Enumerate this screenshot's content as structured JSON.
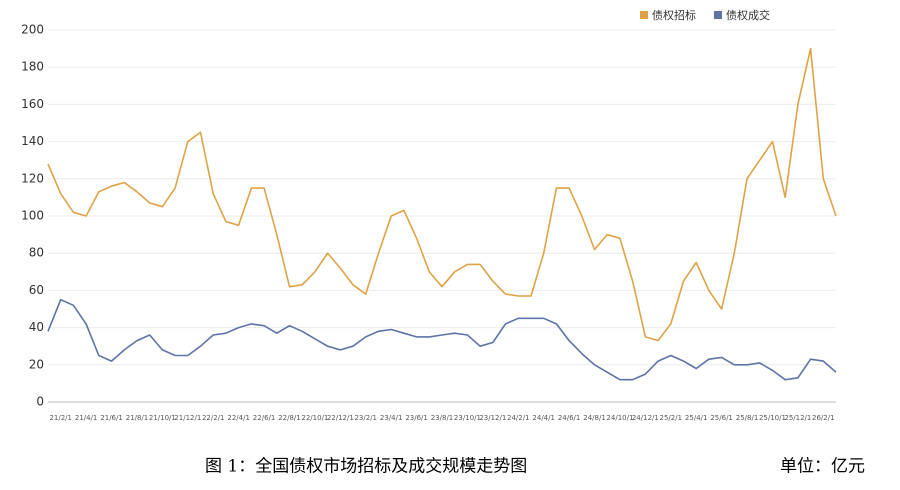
{
  "chart_data": {
    "type": "line",
    "title": "图 1：全国债权市场招标及成交规模走势图",
    "unit_note": "单位：亿元",
    "categories": [
      null,
      "21/2/1",
      null,
      "21/4/1",
      null,
      "21/6/1",
      null,
      "21/8/1",
      null,
      "21/10/1",
      null,
      "21/12/1",
      null,
      "22/2/1",
      null,
      "22/4/1",
      null,
      "22/6/1",
      null,
      "22/8/1",
      null,
      "22/10/1",
      null,
      "22/12/1",
      null,
      "23/2/1",
      null,
      "23/4/1",
      null,
      "23/6/1",
      null,
      "23/8/1",
      null,
      "23/10/1",
      null,
      "23/12/1",
      null,
      "24/2/1",
      null,
      "24/4/1",
      null,
      "24/6/1",
      null,
      "24/8/1",
      null,
      "24/10/1",
      null,
      "24/12/1",
      null,
      "25/2/1",
      null,
      "25/4/1",
      null,
      "25/6/1",
      null,
      "25/8/1",
      null,
      "25/10/1",
      null,
      "25/12/1",
      null,
      "26/2/1",
      null
    ],
    "series": [
      {
        "name": "债权招标",
        "color": "#e0a246",
        "values": [
          128,
          112,
          102,
          100,
          113,
          116,
          118,
          113,
          107,
          105,
          115,
          140,
          145,
          112,
          97,
          95,
          115,
          115,
          90,
          62,
          63,
          70,
          80,
          72,
          63,
          58,
          80,
          100,
          103,
          88,
          70,
          62,
          70,
          74,
          74,
          65,
          58,
          57,
          57,
          80,
          115,
          115,
          100,
          82,
          90,
          88,
          65,
          35,
          33,
          42,
          65,
          75,
          60,
          50,
          80,
          120,
          130,
          140,
          110,
          160,
          190,
          120,
          100
        ]
      },
      {
        "name": "债权成交",
        "color": "#5d74a5",
        "values": [
          38,
          55,
          52,
          42,
          25,
          22,
          28,
          33,
          36,
          28,
          25,
          25,
          30,
          36,
          37,
          40,
          42,
          41,
          37,
          41,
          38,
          34,
          30,
          28,
          30,
          35,
          38,
          39,
          37,
          35,
          35,
          36,
          37,
          36,
          30,
          32,
          42,
          45,
          45,
          45,
          42,
          33,
          26,
          20,
          16,
          12,
          12,
          15,
          22,
          25,
          22,
          18,
          23,
          24,
          20,
          20,
          21,
          17,
          12,
          13,
          23,
          22,
          16
        ]
      }
    ],
    "ylim": [
      0,
      200
    ],
    "yticks": [
      0,
      20,
      40,
      60,
      80,
      100,
      120,
      140,
      160,
      180,
      200
    ],
    "grid": true,
    "legend": "upper right"
  }
}
